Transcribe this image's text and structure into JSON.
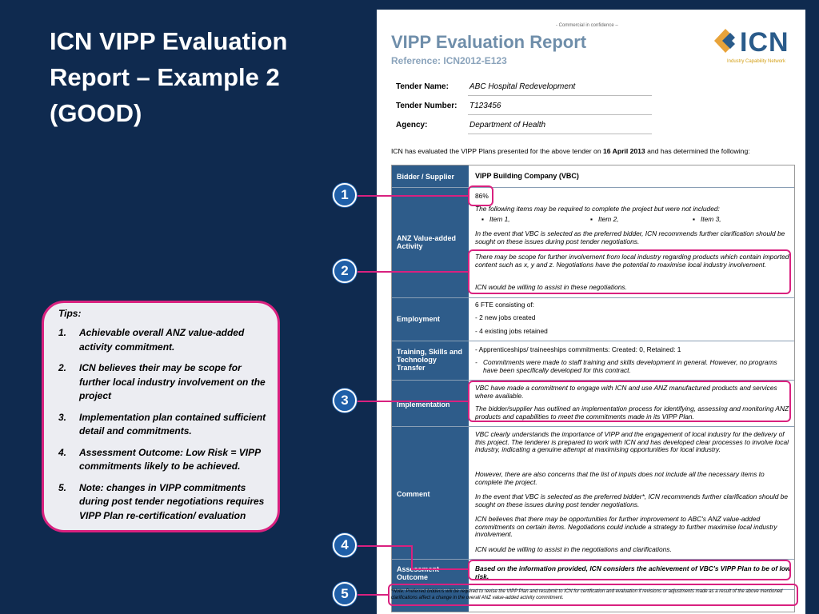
{
  "slide": {
    "title": "ICN VIPP Evaluation Report – Example 2 (GOOD)"
  },
  "tips": {
    "heading": "Tips:",
    "items": [
      {
        "num": "1.",
        "text": "Achievable overall ANZ value-added activity commitment."
      },
      {
        "num": "2.",
        "text": "ICN believes their may be scope for further local industry involvement on the project"
      },
      {
        "num": "3.",
        "text": "Implementation plan contained sufficient detail and commitments."
      },
      {
        "num": "4.",
        "text": "Assessment Outcome: Low Risk = VIPP commitments likely to be achieved."
      },
      {
        "num": "5.",
        "text": "Note: changes in VIPP commitments during post tender negotiations requires VIPP Plan re-certification/ evaluation"
      }
    ]
  },
  "document": {
    "confidential": "- Commercial in confidence –",
    "title": "VIPP Evaluation Report",
    "reference": "Reference: ICN2012-E123",
    "logo": {
      "text": "ICN",
      "subtitle": "Industry Capability Network",
      "icon": "icn-logo-icon"
    },
    "meta": [
      {
        "label": "Tender Name:",
        "value": "ABC Hospital Redevelopment"
      },
      {
        "label": "Tender Number:",
        "value": "T123456"
      },
      {
        "label": "Agency:",
        "value": "Department of Health"
      }
    ],
    "intro_prefix": "ICN has evaluated the VIPP Plans presented for the above tender on ",
    "intro_date": "16 April 2013",
    "intro_suffix": " and has determined the following:",
    "table": {
      "bidder_label": "Bidder / Supplier",
      "bidder_value": "VIPP Building Company (VBC)",
      "anz_label": "ANZ Value-added Activity",
      "anz_percent": "86%",
      "anz_items_intro": "The following items may be required to complete the project but were not included:",
      "anz_items": [
        "Item 1,",
        "Item 2,",
        "Item 3,"
      ],
      "anz_p1": "In the event that VBC is selected as the preferred bidder, ICN recommends further clarification should be sought on these issues during post tender negotiations.",
      "anz_p2": "There may be scope for further involvement from local industry regarding products which contain imported content such as x, y and z. Negotiations have the potential to maximise local industry involvement.",
      "anz_p3": "ICN would be willing to assist in these negotiations.",
      "employment_label": "Employment",
      "employment_lines": [
        "6 FTE consisting of:",
        "-  2 new jobs created",
        "-  4 existing jobs retained"
      ],
      "training_label": "Training, Skills and Technology Transfer",
      "training_line1": "-  Apprenticeships/ traineeships commitments: Created: 0, Retained: 1",
      "training_line2": "Commitments were made to staff training and skills development in general. However, no programs have been specifically developed for this contract.",
      "implementation_label": "Implementation",
      "implementation_p1": "VBC have made a commitment to engage with ICN and use ANZ manufactured products and services where available.",
      "implementation_p2": "The bidder/supplier has outlined an implementation process for identifying, assessing and monitoring ANZ products and capabilities to meet the commitments made in its VIPP Plan.",
      "comment_label": "Comment",
      "comment_p1": "VBC clearly understands the importance of VIPP and the engagement of local industry for the delivery of this project. The tenderer is prepared to work with ICN and has developed clear processes to involve local industry, indicating a genuine attempt at maximising opportunities for local industry.",
      "comment_p2": "However, there are also concerns that the list of inputs does not include all the necessary items to complete the project.",
      "comment_p3": "In the event that VBC is selected as the preferred bidder*, ICN recommends further clarification should be sought on these issues during post tender negotiations.",
      "comment_p4": "ICN believes that there may be opportunities for further improvement to ABC's ANZ value-added commitments on certain items. Negotiations could include a strategy to further maximise local industry involvement.",
      "comment_p5": "ICN would be willing to assist in the negotiations and clarifications.",
      "assessment_label": "Assessment Outcome",
      "assessment_text": "Based on the information provided, ICN considers the achievement of VBC's VIPP Plan to be of low risk."
    },
    "footnote": "*Note: Preferred bidder/s will be required to revise the VIPP Plan and resubmit to ICN for certification and evaluation if revisions or adjustments made as a result of the above mentioned clarifications affect a change in the overall ANZ value-added activity commitment."
  },
  "callouts": [
    "1",
    "2",
    "3",
    "4",
    "5"
  ],
  "colors": {
    "background": "#0f2a4f",
    "accent": "#d9217f",
    "badge": "#1f5fa8",
    "table_header": "#2e5c8a"
  }
}
